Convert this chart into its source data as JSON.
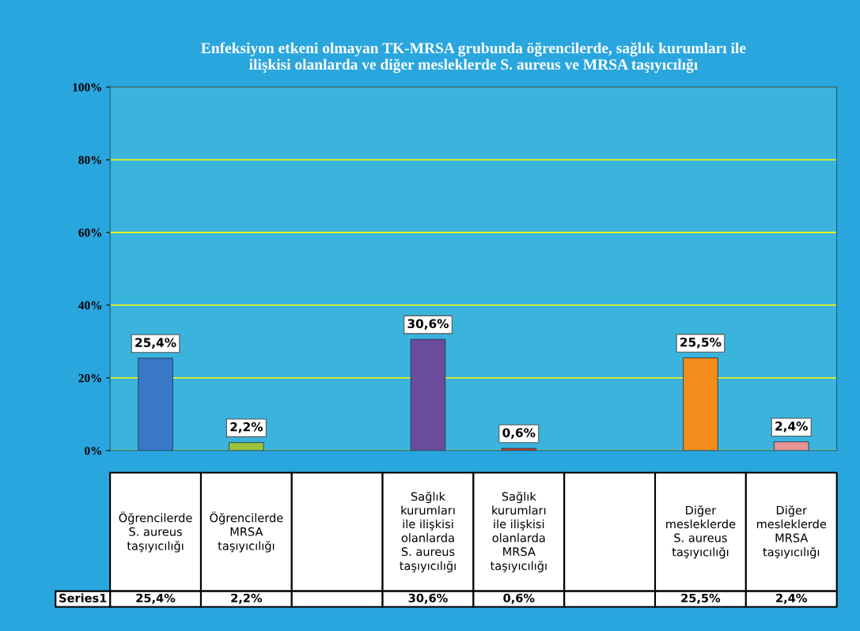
{
  "chart_data": {
    "type": "bar",
    "title": "Enfeksiyon etkeni olmayan TK-MRSA grubunda öğrencilerde, sağlık kurumları ile\nilişkisi olanlarda ve diğer mesleklerde S. aureus ve MRSA taşıyıcılığı",
    "categories": [
      "Öğrencilerde\nS. aureus\ntaşıyıcılığı",
      "Öğrencilerde\nMRSA\ntaşıyıcılığı",
      null,
      "Sağlık\nkurumları\nile ilişkisi\nolanlarda\nS. aureus\ntaşıyıcılığı",
      "Sağlık\nkurumları\nile ilişkisi\nolanlarda\nMRSA\ntaşıyıcılığı",
      null,
      "Diğer\nmesleklerde\nS. aureus\ntaşıyıcılığı",
      "Diğer\nmesleklerde\nMRSA\ntaşıyıcılığı"
    ],
    "series": [
      {
        "name": "Series1",
        "values": [
          25.4,
          2.2,
          null,
          30.6,
          0.6,
          null,
          25.5,
          2.4
        ],
        "value_labels": [
          "25,4%",
          "2,2%",
          null,
          "30,6%",
          "0,6%",
          null,
          "25,5%",
          "2,4%"
        ]
      }
    ],
    "colors": [
      "#3a78c8",
      "#9cc23c",
      null,
      "#6b4c9c",
      "#c8402a",
      null,
      "#f48c1c",
      "#e89494"
    ],
    "ylim": [
      0,
      100
    ],
    "yticks": [
      {
        "value": 0,
        "label": "0%"
      },
      {
        "value": 20,
        "label": "20%"
      },
      {
        "value": 40,
        "label": "40%"
      },
      {
        "value": 60,
        "label": "60%"
      },
      {
        "value": 80,
        "label": "80%"
      },
      {
        "value": 100,
        "label": "100%"
      }
    ],
    "grid": "y",
    "legend": false
  }
}
